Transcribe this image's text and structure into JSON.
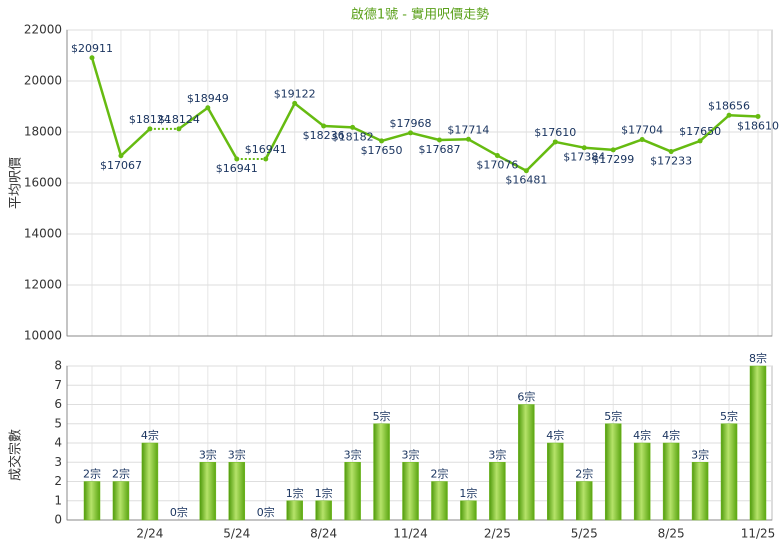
{
  "chart_data": [
    {
      "type": "line",
      "title": "啟德1號 - 實用呎價走勢",
      "ylabel": "平均呎價",
      "color": "#66bb11",
      "values": [
        20911,
        17067,
        18124,
        18124,
        18949,
        16941,
        16941,
        19122,
        18236,
        18182,
        17650,
        17968,
        17687,
        17714,
        17076,
        16481,
        17610,
        17384,
        17299,
        17704,
        17233,
        17650,
        18656,
        18610
      ],
      "value_labels": [
        "$20911",
        "$17067",
        "$18124",
        "$18124",
        "$18949",
        "$16941",
        "$16941",
        "$19122",
        "$18236",
        "$18182",
        "$17650",
        "$17968",
        "$17687",
        "$17714",
        "$17076",
        "$16481",
        "$17610",
        "$17384",
        "$17299",
        "$17704",
        "$17233",
        "$17650",
        "$18656",
        "$18610"
      ],
      "ylim": [
        10000,
        22000
      ],
      "yticks": [
        10000,
        12000,
        14000,
        16000,
        18000,
        20000,
        22000
      ],
      "grid": true
    },
    {
      "type": "bar",
      "ylabel": "成交宗數",
      "color": "#6fb81f",
      "categories": [
        null,
        null,
        "2/24",
        null,
        null,
        "5/24",
        null,
        null,
        "8/24",
        null,
        null,
        "11/24",
        null,
        null,
        "2/25",
        null,
        null,
        "5/25",
        null,
        null,
        "8/25",
        null,
        null,
        "11/25"
      ],
      "values": [
        2,
        2,
        4,
        0,
        3,
        3,
        0,
        1,
        1,
        3,
        5,
        3,
        2,
        1,
        3,
        6,
        4,
        2,
        5,
        4,
        4,
        3,
        5,
        8
      ],
      "value_labels": [
        "2宗",
        "2宗",
        "4宗",
        "0宗",
        "3宗",
        "3宗",
        "0宗",
        "1宗",
        "1宗",
        "3宗",
        "5宗",
        "3宗",
        "2宗",
        "1宗",
        "3宗",
        "6宗",
        "4宗",
        "2宗",
        "5宗",
        "4宗",
        "4宗",
        "3宗",
        "5宗",
        "8宗"
      ],
      "ylim": [
        0,
        8
      ],
      "yticks": [
        0,
        1,
        2,
        3,
        4,
        5,
        6,
        7,
        8
      ],
      "grid": true
    }
  ]
}
